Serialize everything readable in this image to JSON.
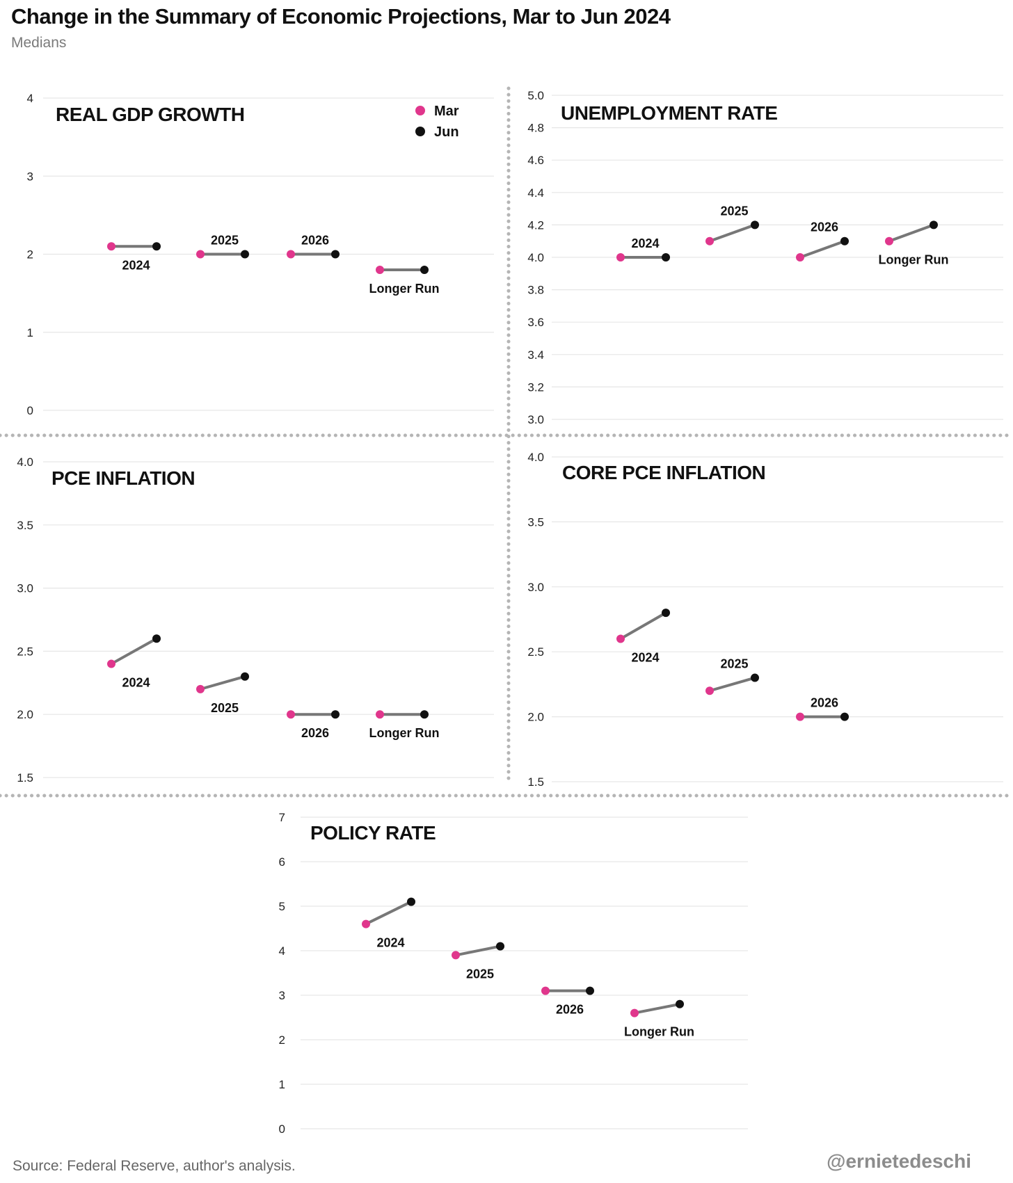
{
  "header": {
    "title": "Change in the Summary of Economic Projections,  Mar to Jun 2024",
    "subtitle": "Medians"
  },
  "footer": {
    "source": "Source: Federal Reserve, author's analysis.",
    "handle": "@ernietedeschi"
  },
  "colors": {
    "mar": "#e0368c",
    "jun": "#111111",
    "connector": "#777777",
    "grid": "#e6e6e6",
    "divider": "#b5b5b5"
  },
  "legend": {
    "position": "top-right",
    "items": [
      {
        "label": "Mar"
      },
      {
        "label": "Jun"
      }
    ]
  },
  "chart_data": [
    {
      "type": "dumbbell",
      "title": "REAL GDP GROWTH",
      "ylim": [
        0,
        4
      ],
      "yticks": [
        "0",
        "1",
        "2",
        "3",
        "4"
      ],
      "grid": true,
      "legend": true,
      "series": [
        {
          "name": "Mar"
        },
        {
          "name": "Jun"
        }
      ],
      "categories": [
        "2024",
        "2025",
        "2026",
        "Longer Run"
      ],
      "mar": [
        2.1,
        2.0,
        2.0,
        1.8
      ],
      "jun": [
        2.1,
        2.0,
        2.0,
        1.8
      ],
      "label_side": [
        "below",
        "above",
        "above",
        "below"
      ]
    },
    {
      "type": "dumbbell",
      "title": "UNEMPLOYMENT RATE",
      "ylim": [
        3.0,
        5.0
      ],
      "yticks": [
        "3.0",
        "3.2",
        "3.4",
        "3.6",
        "3.8",
        "4.0",
        "4.2",
        "4.4",
        "4.6",
        "4.8",
        "5.0"
      ],
      "grid": true,
      "categories": [
        "2024",
        "2025",
        "2026",
        "Longer Run"
      ],
      "mar": [
        4.0,
        4.1,
        4.0,
        4.1
      ],
      "jun": [
        4.0,
        4.2,
        4.1,
        4.2
      ],
      "label_side": [
        "above",
        "above",
        "above",
        "below"
      ]
    },
    {
      "type": "dumbbell",
      "title": "PCE INFLATION",
      "ylim": [
        1.5,
        4.0
      ],
      "yticks": [
        "1.5",
        "2.0",
        "2.5",
        "3.0",
        "3.5",
        "4.0"
      ],
      "grid": true,
      "categories": [
        "2024",
        "2025",
        "2026",
        "Longer Run"
      ],
      "mar": [
        2.4,
        2.2,
        2.0,
        2.0
      ],
      "jun": [
        2.6,
        2.3,
        2.0,
        2.0
      ],
      "label_side": [
        "below",
        "below",
        "below",
        "below"
      ]
    },
    {
      "type": "dumbbell",
      "title": "CORE PCE INFLATION",
      "ylim": [
        1.5,
        4.0
      ],
      "yticks": [
        "1.5",
        "2.0",
        "2.5",
        "3.0",
        "3.5",
        "4.0"
      ],
      "grid": true,
      "categories": [
        "2024",
        "2025",
        "2026"
      ],
      "mar": [
        2.6,
        2.2,
        2.0
      ],
      "jun": [
        2.8,
        2.3,
        2.0
      ],
      "label_side": [
        "below",
        "above",
        "above"
      ]
    },
    {
      "type": "dumbbell",
      "title": "POLICY RATE",
      "ylim": [
        0,
        7
      ],
      "yticks": [
        "0",
        "1",
        "2",
        "3",
        "4",
        "5",
        "6",
        "7"
      ],
      "grid": true,
      "categories": [
        "2024",
        "2025",
        "2026",
        "Longer Run"
      ],
      "mar": [
        4.6,
        3.9,
        3.1,
        2.6
      ],
      "jun": [
        5.1,
        4.1,
        3.1,
        2.8
      ],
      "label_side": [
        "below",
        "below",
        "below",
        "below"
      ]
    }
  ]
}
